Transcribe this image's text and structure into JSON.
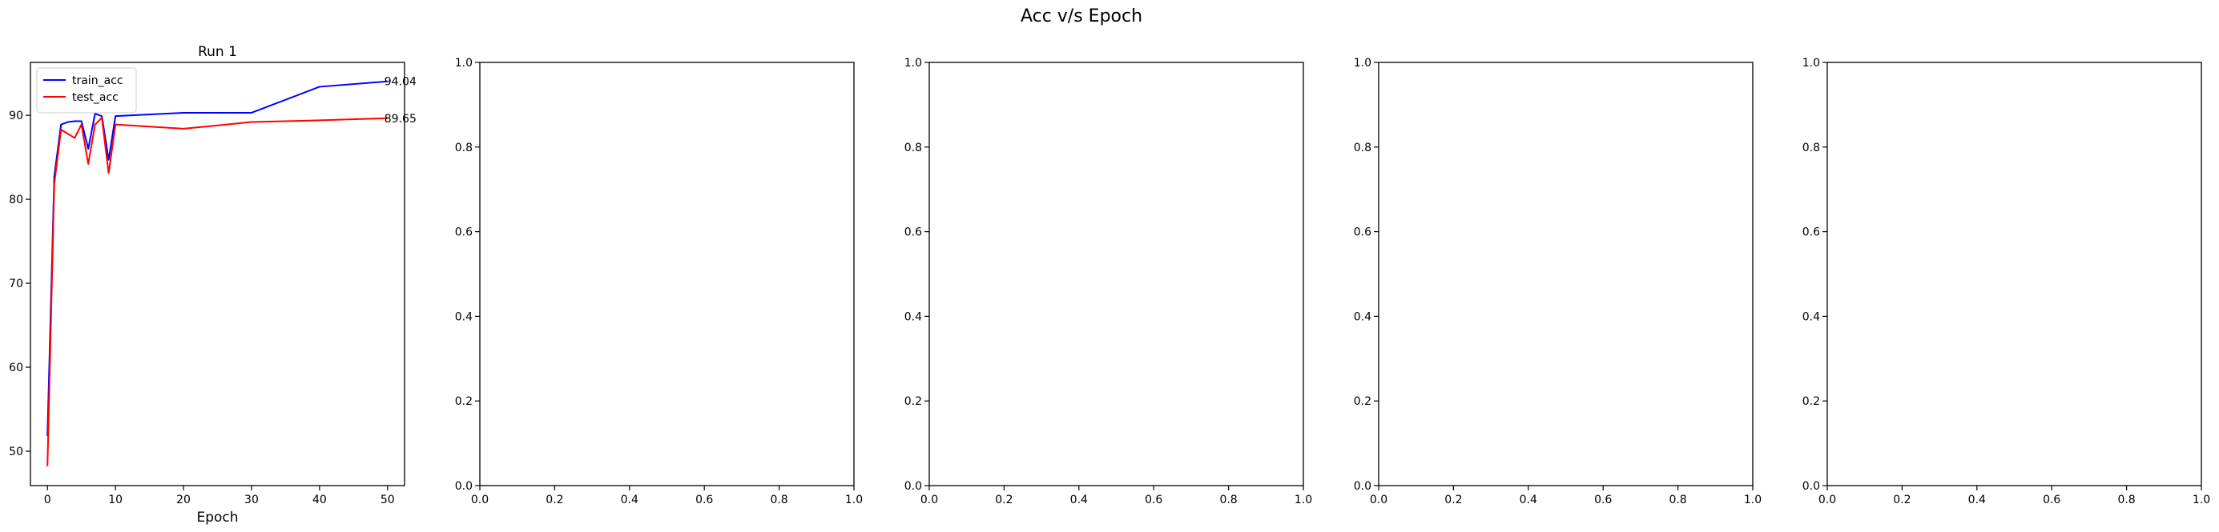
{
  "figure": {
    "suptitle": "Acc v/s Epoch"
  },
  "chart_data": [
    {
      "type": "line",
      "title": "Run 1",
      "xlabel": "Epoch",
      "ylabel": "",
      "xlim": [
        -2.5,
        52.5
      ],
      "ylim": [
        45.9,
        96.3
      ],
      "xticks": [
        0,
        10,
        20,
        30,
        40,
        50
      ],
      "yticks": [
        50,
        60,
        70,
        80,
        90
      ],
      "grid": false,
      "legend": "top-left",
      "series": [
        {
          "name": "train_acc",
          "color": "#0000ff",
          "x": [
            0,
            1,
            2,
            3,
            4,
            5,
            6,
            7,
            8,
            9,
            10,
            20,
            30,
            40,
            50
          ],
          "y": [
            51.8,
            82.7,
            88.9,
            89.2,
            89.3,
            89.3,
            86.0,
            90.2,
            89.9,
            84.7,
            89.9,
            90.3,
            90.3,
            93.4,
            94.04
          ],
          "end_label": "94.04"
        },
        {
          "name": "test_acc",
          "color": "#ff0000",
          "x": [
            0,
            1,
            2,
            3,
            4,
            5,
            6,
            7,
            8,
            9,
            10,
            20,
            30,
            40,
            50
          ],
          "y": [
            48.2,
            81.8,
            88.3,
            87.8,
            87.3,
            88.9,
            84.2,
            88.9,
            89.7,
            83.1,
            88.9,
            88.4,
            89.2,
            89.4,
            89.65
          ],
          "end_label": "89.65"
        }
      ]
    },
    {
      "type": "line",
      "title": "",
      "xlabel": "",
      "ylabel": "",
      "xlim": [
        0,
        1
      ],
      "ylim": [
        0,
        1
      ],
      "xticks": [
        0.0,
        0.2,
        0.4,
        0.6,
        0.8,
        1.0
      ],
      "yticks": [
        0.0,
        0.2,
        0.4,
        0.6,
        0.8,
        1.0
      ],
      "xticklabels": [
        "0.0",
        "0.2",
        "0.4",
        "0.6",
        "0.8",
        "1.0"
      ],
      "yticklabels": [
        "0.0",
        "0.2",
        "0.4",
        "0.6",
        "0.8",
        "1.0"
      ],
      "grid": false,
      "series": []
    },
    {
      "type": "line",
      "title": "",
      "xlabel": "",
      "ylabel": "",
      "xlim": [
        0,
        1
      ],
      "ylim": [
        0,
        1
      ],
      "xticks": [
        0.0,
        0.2,
        0.4,
        0.6,
        0.8,
        1.0
      ],
      "yticks": [
        0.0,
        0.2,
        0.4,
        0.6,
        0.8,
        1.0
      ],
      "xticklabels": [
        "0.0",
        "0.2",
        "0.4",
        "0.6",
        "0.8",
        "1.0"
      ],
      "yticklabels": [
        "0.0",
        "0.2",
        "0.4",
        "0.6",
        "0.8",
        "1.0"
      ],
      "grid": false,
      "series": []
    },
    {
      "type": "line",
      "title": "",
      "xlabel": "",
      "ylabel": "",
      "xlim": [
        0,
        1
      ],
      "ylim": [
        0,
        1
      ],
      "xticks": [
        0.0,
        0.2,
        0.4,
        0.6,
        0.8,
        1.0
      ],
      "yticks": [
        0.0,
        0.2,
        0.4,
        0.6,
        0.8,
        1.0
      ],
      "xticklabels": [
        "0.0",
        "0.2",
        "0.4",
        "0.6",
        "0.8",
        "1.0"
      ],
      "yticklabels": [
        "0.0",
        "0.2",
        "0.4",
        "0.6",
        "0.8",
        "1.0"
      ],
      "grid": false,
      "series": []
    },
    {
      "type": "line",
      "title": "",
      "xlabel": "",
      "ylabel": "",
      "xlim": [
        0,
        1
      ],
      "ylim": [
        0,
        1
      ],
      "xticks": [
        0.0,
        0.2,
        0.4,
        0.6,
        0.8,
        1.0
      ],
      "yticks": [
        0.0,
        0.2,
        0.4,
        0.6,
        0.8,
        1.0
      ],
      "xticklabels": [
        "0.0",
        "0.2",
        "0.4",
        "0.6",
        "0.8",
        "1.0"
      ],
      "yticklabels": [
        "0.0",
        "0.2",
        "0.4",
        "0.6",
        "0.8",
        "1.0"
      ],
      "grid": false,
      "series": []
    }
  ]
}
